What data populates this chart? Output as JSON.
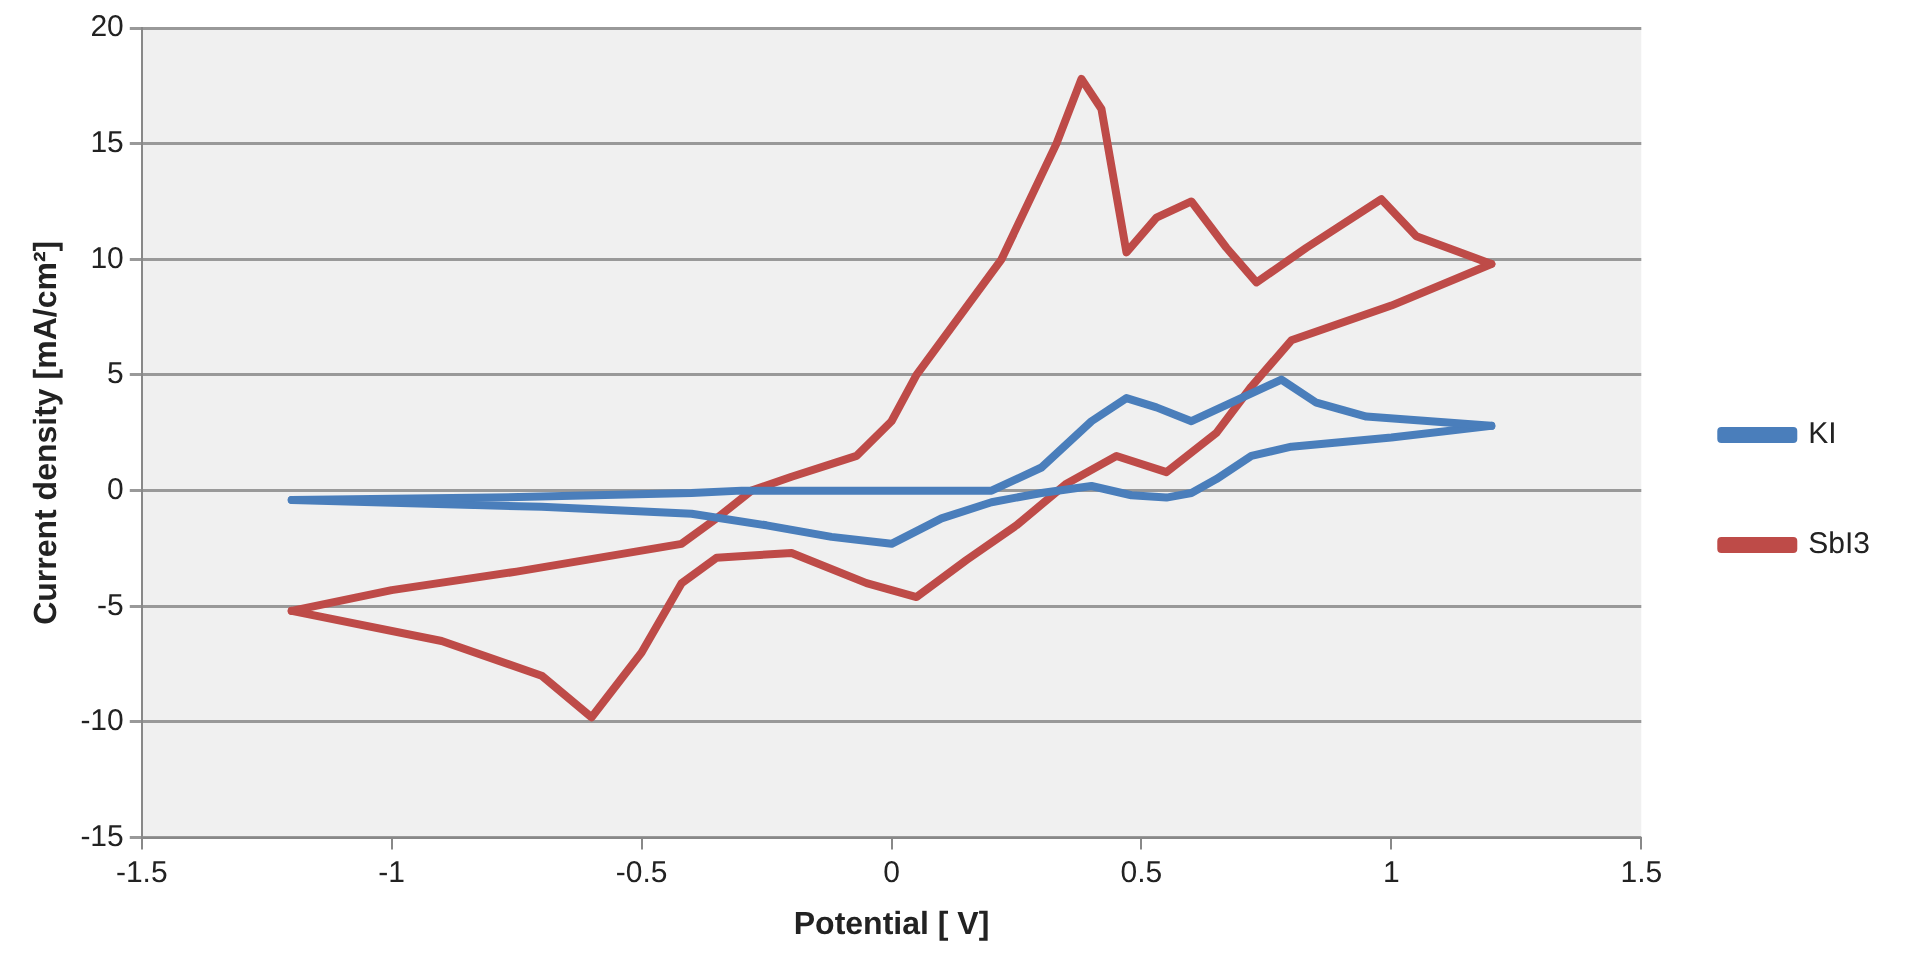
{
  "chart_data": {
    "type": "line",
    "xlabel": "Potential [ V]",
    "ylabel": "Current density [mA/cm²]",
    "xlim": [
      -1.5,
      1.5
    ],
    "xticks": [
      -1.5,
      -1,
      -0.5,
      0,
      0.5,
      1,
      1.5
    ],
    "ylim": [
      -15,
      20
    ],
    "yticks": [
      -15,
      -10,
      -5,
      0,
      5,
      10,
      15,
      20
    ],
    "grid": "y",
    "legend": "right",
    "marker": "none",
    "line_style": "solid",
    "series": [
      {
        "name": "KI",
        "color": "#4a7ebb",
        "x": [
          -1.2,
          -0.8,
          -0.4,
          -0.3,
          0,
          0.2,
          0.3,
          0.4,
          0.47,
          0.53,
          0.6,
          0.68,
          0.78,
          0.85,
          0.95,
          1.2
        ],
        "values": [
          -0.4,
          -0.3,
          -0.1,
          0,
          0,
          0,
          1,
          3,
          4,
          3.6,
          3,
          3.8,
          4.8,
          3.8,
          3.2,
          2.8
        ]
      },
      {
        "color": "#4a7ebb",
        "x": [
          1.2,
          1.0,
          0.8,
          0.72,
          0.65,
          0.6,
          0.55,
          0.48,
          0.4,
          0.3,
          0.2,
          0.1,
          0,
          -0.12,
          -0.25,
          -0.4,
          -0.7,
          -1.2
        ],
        "values": [
          2.8,
          2.3,
          1.9,
          1.5,
          0.5,
          -0.1,
          -0.3,
          -0.2,
          0.2,
          -0.1,
          -0.5,
          -1.2,
          -2.3,
          -2,
          -1.5,
          -1,
          -0.7,
          -0.4
        ]
      },
      {
        "name": "SbI3",
        "color": "#be4b48",
        "x": [
          -1.2,
          -1,
          -0.75,
          -0.42,
          -0.35,
          -0.28,
          -0.2,
          -0.07,
          0,
          0.05,
          0.22,
          0.33,
          0.38,
          0.42,
          0.47,
          0.53,
          0.6,
          0.67,
          0.73,
          0.83,
          0.98,
          1.05,
          1.2
        ],
        "values": [
          -5.2,
          -4.3,
          -3.5,
          -2.3,
          -1.2,
          0,
          0.6,
          1.5,
          3,
          5,
          10,
          15,
          17.8,
          16.5,
          10.3,
          11.8,
          12.5,
          10.5,
          9,
          10.5,
          12.6,
          11,
          9.8
        ]
      },
      {
        "color": "#be4b48",
        "x": [
          1.2,
          1.0,
          0.8,
          0.72,
          0.65,
          0.55,
          0.45,
          0.35,
          0.25,
          0.15,
          0.05,
          -0.05,
          -0.2,
          -0.28,
          -0.35,
          -0.42,
          -0.5,
          -0.6,
          -0.7,
          -0.9,
          -1.2
        ],
        "values": [
          9.8,
          8,
          6.5,
          4.5,
          2.5,
          0.8,
          1.5,
          0.3,
          -1.5,
          -3,
          -4.6,
          -4,
          -2.7,
          -2.8,
          -2.9,
          -4,
          -7,
          -9.8,
          -8,
          -6.5,
          -5.2
        ]
      }
    ]
  }
}
